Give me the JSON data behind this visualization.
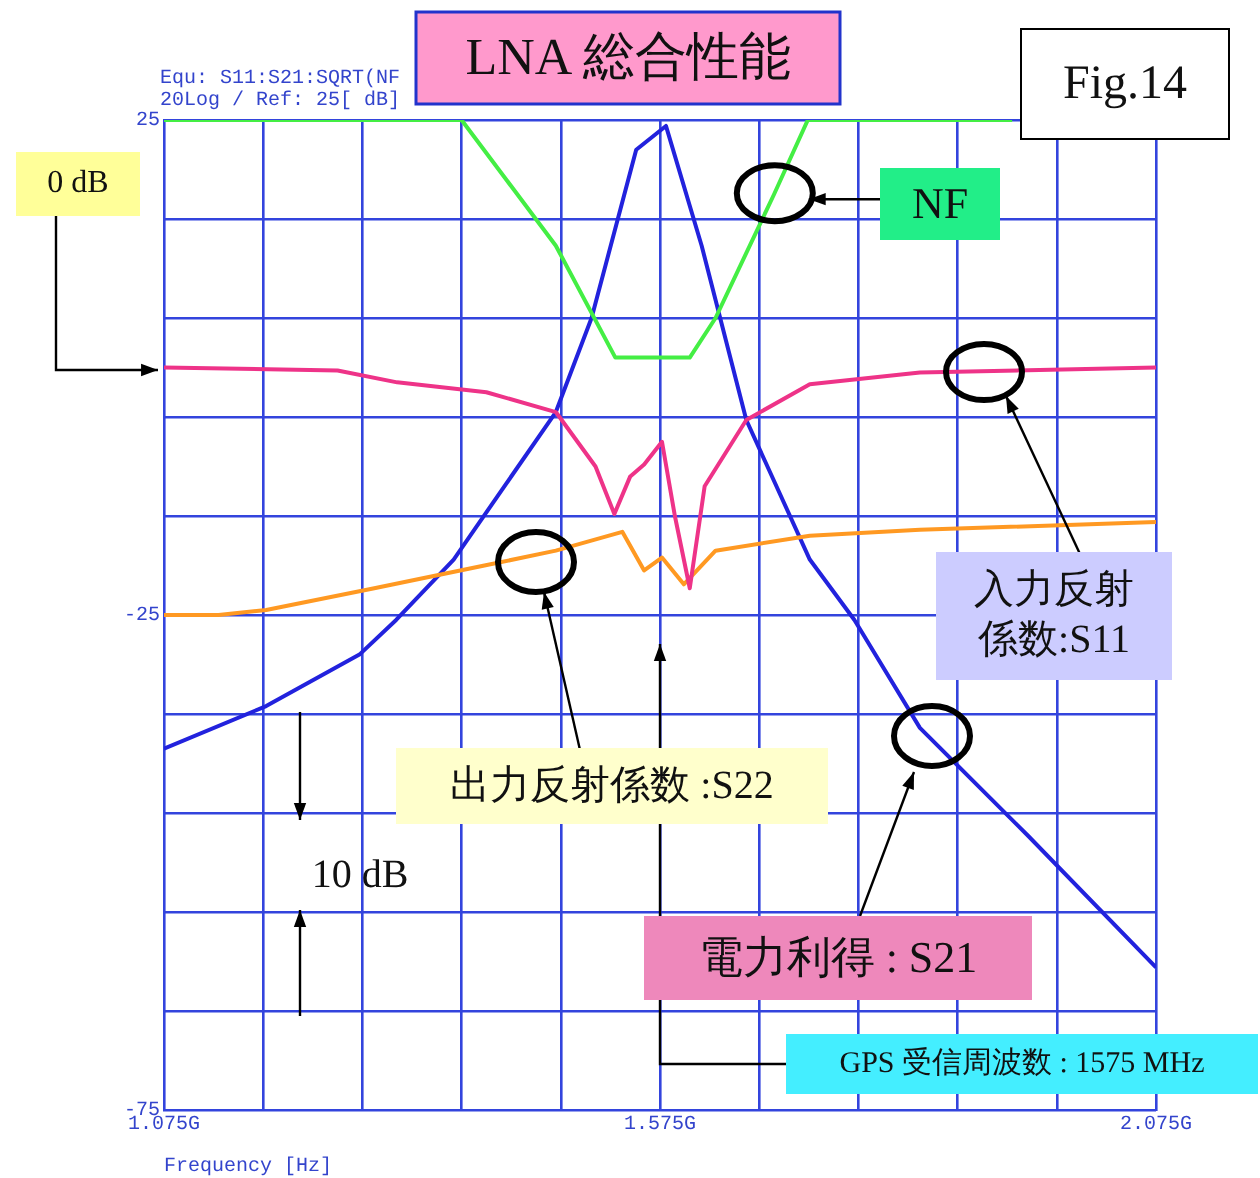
{
  "chart_data": {
    "type": "line",
    "title": "LNA 総合性能",
    "xlabel": "Frequency [Hz]",
    "xlim": [
      1.075,
      2.075
    ],
    "xticks": [
      {
        "value": 1.075,
        "label": "1.075G"
      },
      {
        "value": 1.175,
        "label": null
      },
      {
        "value": 1.275,
        "label": null
      },
      {
        "value": 1.375,
        "label": null
      },
      {
        "value": 1.475,
        "label": null
      },
      {
        "value": 1.575,
        "label": "1.575G"
      },
      {
        "value": 1.675,
        "label": null
      },
      {
        "value": 1.775,
        "label": null
      },
      {
        "value": 1.875,
        "label": null
      },
      {
        "value": 1.975,
        "label": null
      },
      {
        "value": 2.075,
        "label": "2.075G"
      }
    ],
    "ylim": [
      -75,
      25
    ],
    "yticks": [
      -75,
      {
        "value": -65,
        "label": null
      },
      {
        "value": -55,
        "label": null
      },
      {
        "value": -45,
        "label": null
      },
      {
        "value": -35,
        "label": null
      },
      -25,
      {
        "value": -15,
        "label": null
      },
      {
        "value": -5,
        "label": null
      },
      {
        "value": 5,
        "label": null
      },
      {
        "value": 15,
        "label": null
      },
      25
    ],
    "grid": true,
    "line_style": "solid",
    "marker": "none",
    "series": [
      {
        "color": "#44ee44",
        "x": [
          1.075,
          1.375,
          1.47,
          1.53,
          1.575,
          1.605,
          1.631,
          1.69,
          1.724,
          1.93
        ],
        "values": [
          25,
          25,
          12.3,
          1,
          1,
          1,
          5,
          17.5,
          25,
          25
        ]
      },
      {
        "color": "#ee3388",
        "x": [
          1.075,
          1.25,
          1.31,
          1.4,
          1.47,
          1.51,
          1.529,
          1.545,
          1.559,
          1.577,
          1.59,
          1.605,
          1.62,
          1.662,
          1.726,
          1.837,
          2.075
        ],
        "values": [
          0,
          -0.3,
          -1.5,
          -2.5,
          -4.5,
          -10,
          -14.8,
          -11,
          -9.8,
          -7.5,
          -15,
          -22.3,
          -12,
          -5.3,
          -1.7,
          -0.5,
          0
        ]
      },
      {
        "color": "#ff9922",
        "x": [
          1.075,
          1.13,
          1.178,
          1.287,
          1.398,
          1.47,
          1.537,
          1.559,
          1.577,
          1.599,
          1.631,
          1.726,
          1.837,
          2.075
        ],
        "values": [
          -25,
          -25,
          -24.5,
          -22.3,
          -20,
          -18.5,
          -16.6,
          -20.5,
          -19.2,
          -21.9,
          -18.5,
          -17,
          -16.4,
          -15.6
        ]
      },
      {
        "color": "#2222dd",
        "x": [
          1.075,
          1.178,
          1.272,
          1.309,
          1.367,
          1.47,
          1.506,
          1.551,
          1.581,
          1.617,
          1.662,
          1.726,
          1.771,
          1.837,
          1.946,
          2.075
        ],
        "values": [
          -38.5,
          -34.2,
          -29,
          -25.5,
          -19.4,
          -4.5,
          5,
          22,
          24.4,
          12.3,
          -5.3,
          -19.4,
          -25.5,
          -36.4,
          -47.3,
          -60.6
        ]
      }
    ],
    "annotations": [
      "Equ: S11:S21:SQRT(NF",
      "20Log / Ref: 25[ dB]",
      "Fig.14",
      "0 dB",
      {
        "text": "NF",
        "x": 1.725,
        "y": 17
      },
      "入力反射係数:S11",
      "出力反射係数 :S22",
      "10 dB",
      "電力利得 : S21",
      "GPS 受信周波数 : 1575 MHz"
    ]
  }
}
